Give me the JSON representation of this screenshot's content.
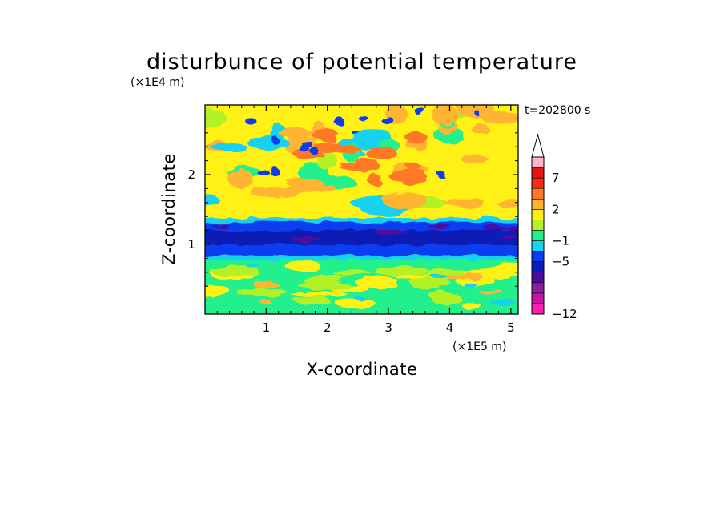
{
  "chart_data": {
    "type": "heatmap",
    "title": "disturbunce of potential temperature",
    "xlabel": "X-coordinate",
    "ylabel": "Z-coordinate",
    "x_scale_label": "(×1E5 m)",
    "y_scale_label": "(×1E4 m)",
    "time_label": "t=202800 s",
    "xlim": [
      0,
      5.12
    ],
    "ylim": [
      0,
      3.0
    ],
    "x_ticks": [
      {
        "value": 1,
        "label": "1"
      },
      {
        "value": 2,
        "label": "2"
      },
      {
        "value": 3,
        "label": "3"
      },
      {
        "value": 4,
        "label": "4"
      },
      {
        "value": 5,
        "label": "5"
      }
    ],
    "y_ticks": [
      {
        "value": 1,
        "label": "1"
      },
      {
        "value": 2,
        "label": "2"
      }
    ],
    "colorbar": {
      "levels": [
        {
          "color": "#ff1eb4"
        },
        {
          "color": "#c814a0"
        },
        {
          "color": "#8c1ea0"
        },
        {
          "color": "#500aa0"
        },
        {
          "color": "#0a1eb4"
        },
        {
          "color": "#0a3cf0"
        },
        {
          "color": "#19d2f0"
        },
        {
          "color": "#23f08c"
        },
        {
          "color": "#b4f028"
        },
        {
          "color": "#fff014"
        },
        {
          "color": "#ffb432"
        },
        {
          "color": "#ff7828"
        },
        {
          "color": "#ff2814"
        },
        {
          "color": "#e61414"
        },
        {
          "color": "#ffb4c8"
        }
      ],
      "tick_labels": [
        {
          "label": "−12",
          "index": 0
        },
        {
          "label": "−5",
          "index": 5
        },
        {
          "label": "−1",
          "index": 7
        },
        {
          "label": "2",
          "index": 10
        },
        {
          "label": "7",
          "index": 13
        }
      ],
      "extend_top": true
    },
    "field_description": "band of strong negative values (≈ −5) between z≈0.8 and z≈1.3; positive disturbances (2 to 7) above z≈1.5; weak mixed values (−1 to 2) below"
  }
}
